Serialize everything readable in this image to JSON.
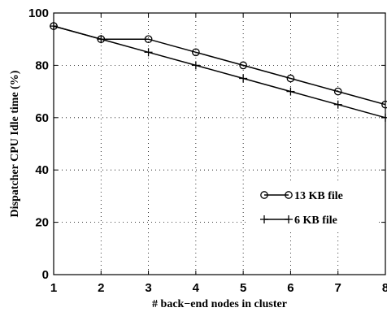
{
  "chart_data": {
    "type": "line",
    "xlabel": "# back−end nodes in cluster",
    "ylabel": "Dispatcher CPU Idle time (%)",
    "x": [
      1,
      2,
      3,
      4,
      5,
      6,
      7,
      8
    ],
    "xlim": [
      1,
      8
    ],
    "ylim": [
      0,
      100
    ],
    "xticks": [
      "1",
      "2",
      "3",
      "4",
      "5",
      "6",
      "7",
      "8"
    ],
    "yticks": [
      "0",
      "20",
      "40",
      "60",
      "80",
      "100"
    ],
    "grid": true,
    "legend_position": "lower-right",
    "series": [
      {
        "name": "13 KB file",
        "marker": "circle",
        "values": [
          95,
          90,
          90,
          85,
          80,
          75,
          70,
          65
        ]
      },
      {
        "name": "6 KB file",
        "marker": "plus",
        "values": [
          95,
          90,
          85,
          80,
          75,
          70,
          65,
          60
        ]
      }
    ]
  }
}
